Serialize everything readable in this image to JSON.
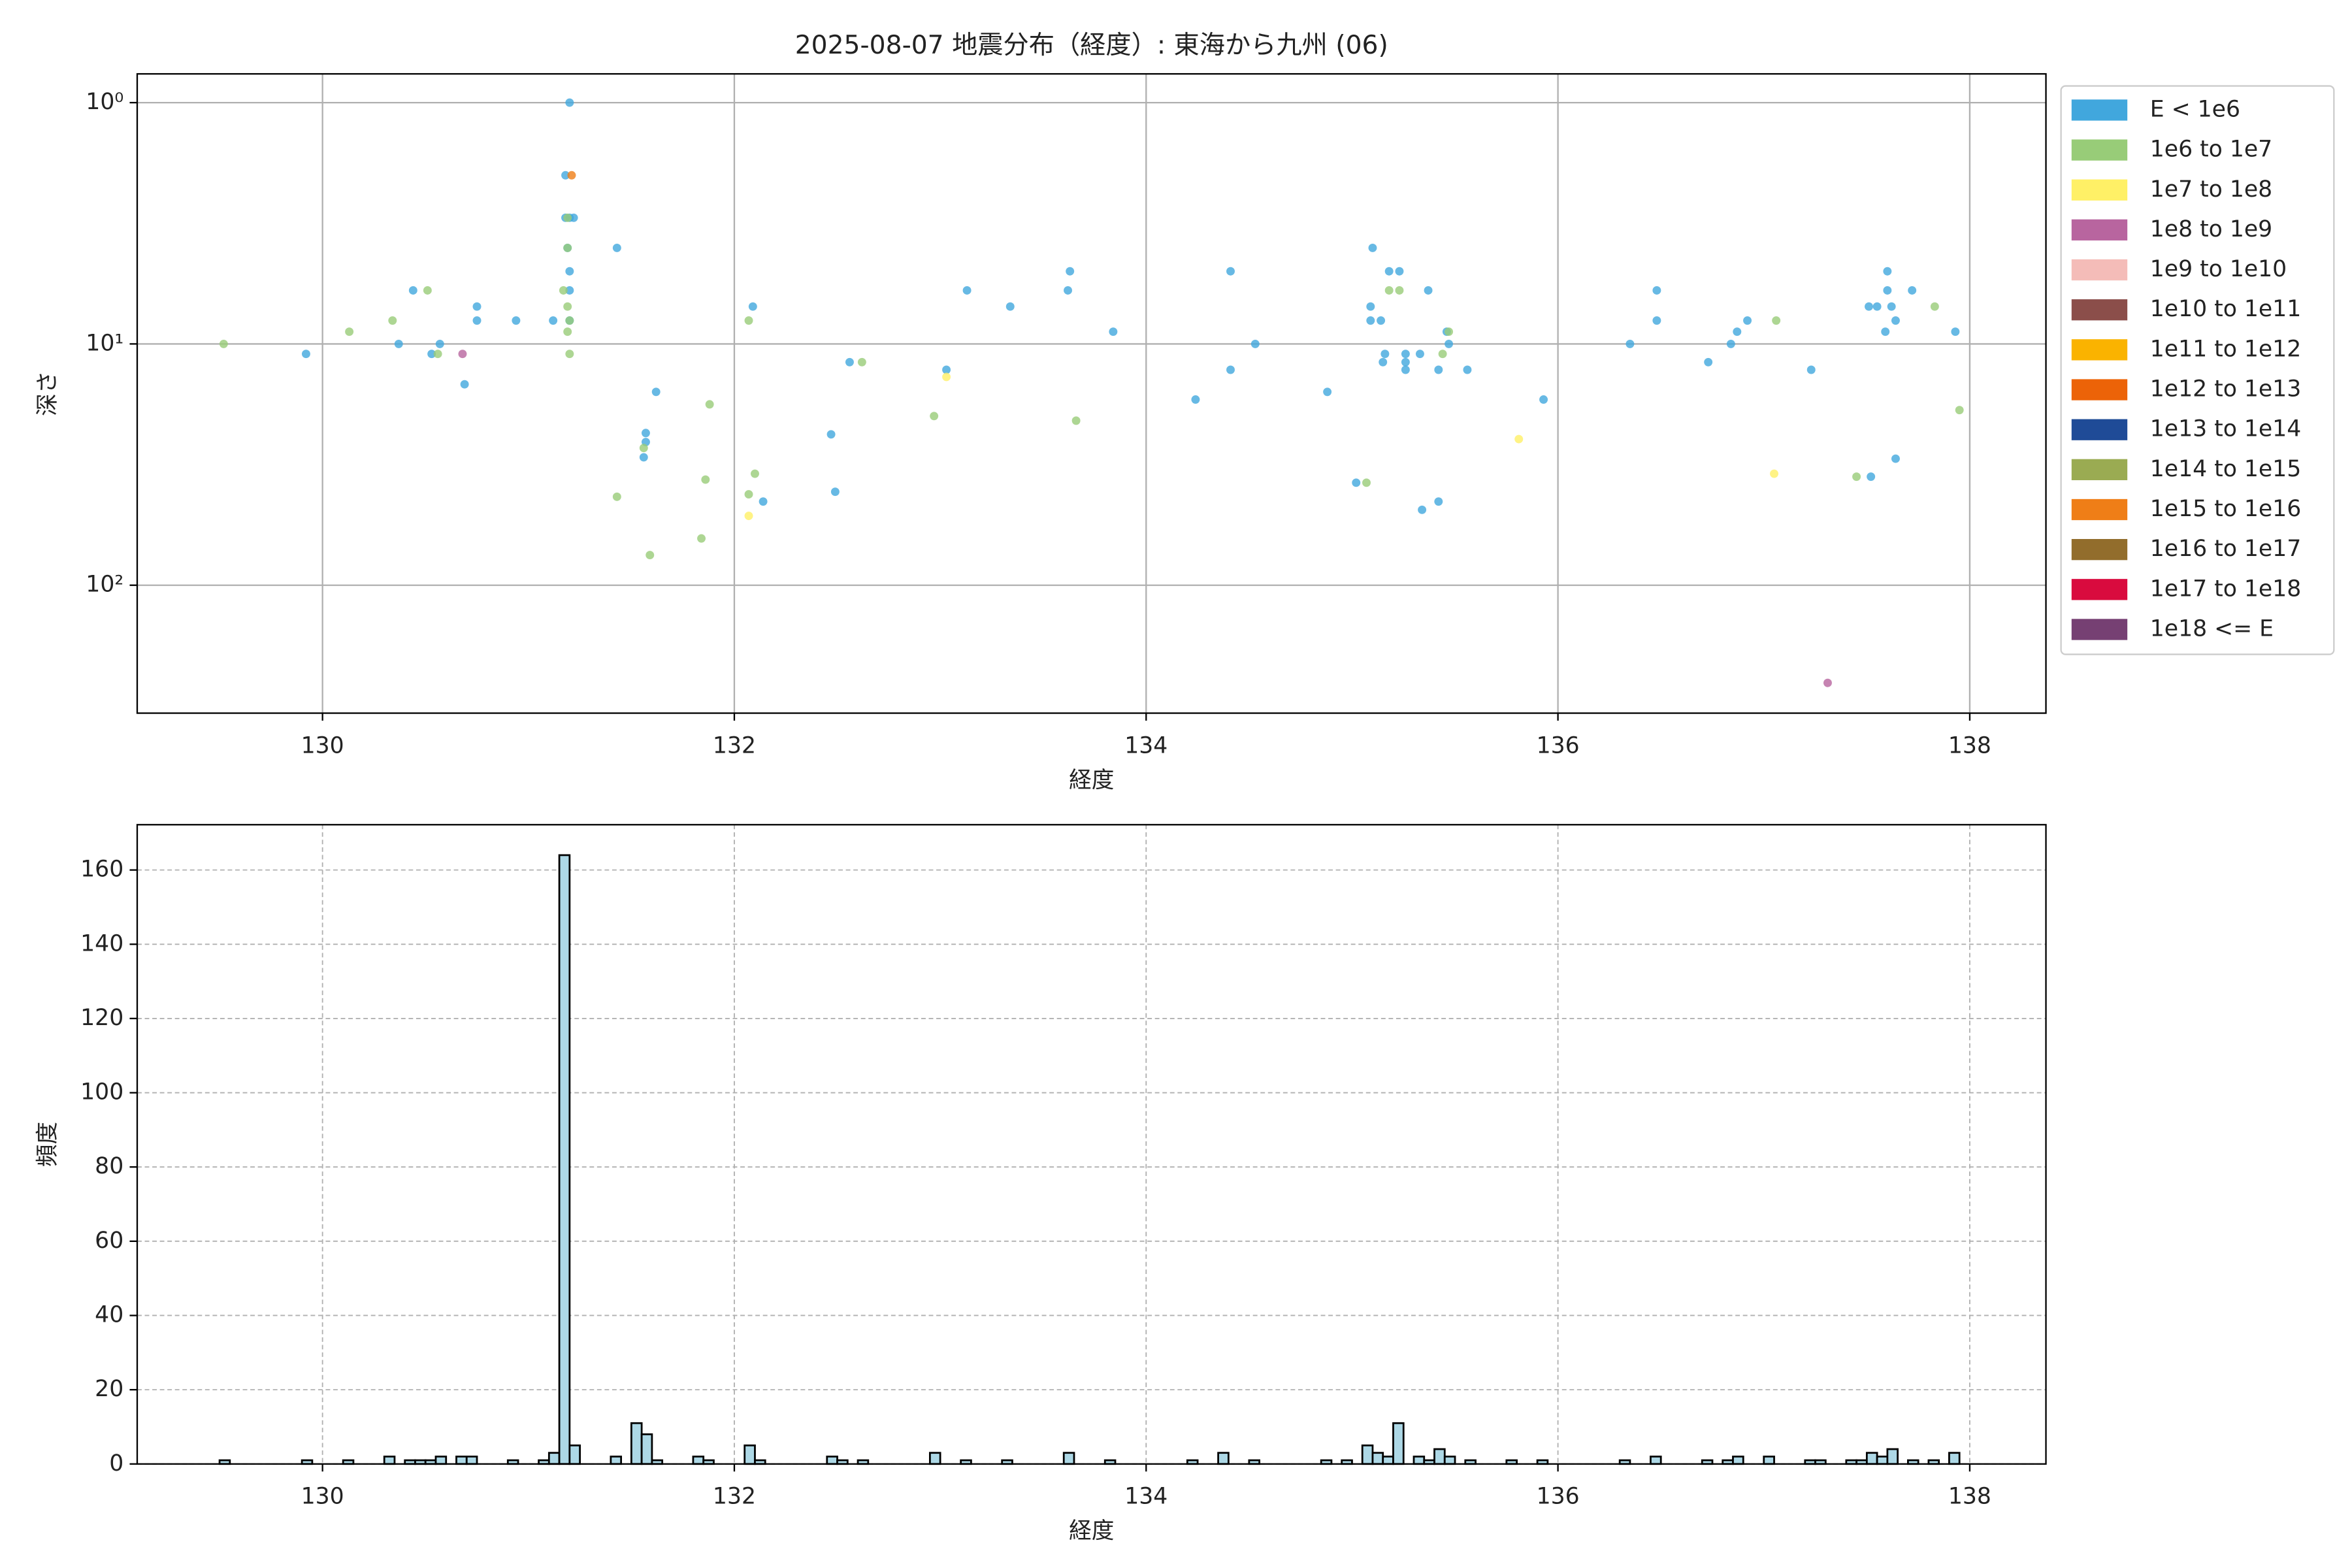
{
  "chart_data": [
    {
      "type": "scatter",
      "title": "2025-08-07 地震分布（経度）: 東海から九州 (06)",
      "xlabel": "経度",
      "ylabel": "深さ",
      "xlim": [
        129.1,
        138.37
      ],
      "xticks": [
        130,
        132,
        134,
        136,
        138
      ],
      "ylim": [
        0.76,
        339
      ],
      "yscale": "log",
      "yinvert": true,
      "yticks": [
        {
          "value": 1,
          "label": "10⁰"
        },
        {
          "value": 10,
          "label": "10¹"
        },
        {
          "value": 100,
          "label": "10²"
        }
      ],
      "grid": true,
      "legend": "outside",
      "series": [
        {
          "name": "E < 1e6",
          "color": "#41a7dd",
          "x": [
            131.2,
            131.18,
            131.2,
            131.18,
            131.22,
            131.19,
            131.2,
            131.2,
            131.2,
            131.12,
            131.43,
            130.44,
            129.92,
            130.37,
            130.57,
            130.53,
            130.75,
            130.75,
            130.94,
            130.69,
            131.62,
            131.57,
            131.57,
            131.56,
            132.09,
            132.56,
            132.47,
            132.14,
            132.49,
            133.03,
            133.13,
            133.34,
            133.63,
            133.62,
            133.84,
            134.41,
            134.41,
            134.24,
            134.53,
            134.88,
            135.02,
            135.1,
            135.09,
            135.09,
            135.14,
            135.16,
            135.15,
            135.18,
            135.23,
            135.26,
            135.26,
            135.26,
            135.33,
            135.37,
            135.34,
            135.42,
            135.42,
            135.47,
            135.56,
            135.46,
            135.93,
            136.35,
            136.48,
            136.48,
            136.73,
            136.84,
            136.87,
            136.92,
            137.23,
            137.52,
            137.51,
            137.55,
            137.62,
            137.6,
            137.6,
            137.59,
            137.64,
            137.72,
            137.64,
            137.93
          ],
          "values": [
            1.0,
            2.0,
            3.0,
            3.0,
            3.0,
            4.0,
            5.0,
            6.0,
            8.0,
            8.0,
            4.0,
            6.0,
            11.0,
            10,
            10,
            11,
            7,
            8,
            8,
            14.7,
            15.8,
            23.4,
            25.5,
            29.5,
            7,
            11.9,
            23.7,
            45,
            41,
            12.8,
            6,
            7,
            5,
            6,
            8.9,
            5,
            12.8,
            17,
            10,
            15.8,
            37.6,
            4,
            7,
            8,
            8,
            11,
            11.9,
            5,
            5,
            11,
            11.9,
            12.8,
            11,
            6,
            48.7,
            45,
            12.8,
            10,
            12.8,
            8.9,
            17,
            10,
            6,
            8,
            11.9,
            10,
            8.9,
            8,
            12.8,
            35.5,
            7,
            7,
            7,
            5,
            6,
            8.9,
            8,
            6,
            29.9,
            8.9
          ]
        },
        {
          "name": "1e6 to 1e7",
          "color": "#98cc78",
          "x": [
            129.52,
            130.13,
            130.34,
            130.51,
            130.56,
            131.19,
            131.19,
            131.17,
            131.19,
            131.2,
            131.19,
            131.2,
            131.43,
            131.56,
            131.59,
            131.84,
            131.86,
            131.88,
            132.07,
            132.07,
            132.1,
            132.62,
            132.97,
            133.66,
            135.18,
            135.23,
            135.44,
            135.47,
            135.07,
            137.06,
            137.45,
            137.83,
            137.95
          ],
          "values": [
            10,
            8.9,
            8,
            6,
            11,
            3,
            4,
            6,
            7,
            8,
            8.9,
            11,
            43,
            27,
            75,
            64,
            36.5,
            17.8,
            8,
            42,
            34.5,
            11.9,
            19.9,
            20.8,
            6,
            6,
            11,
            8.9,
            37.6,
            8,
            35.5,
            7,
            18.8
          ]
        },
        {
          "name": "1e7 to 1e8",
          "color": "#fff066",
          "x": [
            133.03,
            132.07,
            135.81,
            137.05
          ],
          "values": [
            13.7,
            51.6,
            24.8,
            34.5
          ]
        },
        {
          "name": "1e8 to 1e9",
          "color": "#b8659f",
          "x": [
            130.68,
            137.31
          ],
          "values": [
            11,
            254
          ]
        },
        {
          "name": "1e9 to 1e10",
          "color": "#f4bcb8",
          "x": [],
          "values": []
        },
        {
          "name": "1e10 to 1e11",
          "color": "#8b4e4a",
          "x": [],
          "values": []
        },
        {
          "name": "1e11 to 1e12",
          "color": "#fab300",
          "x": [],
          "values": []
        },
        {
          "name": "1e12 to 1e13",
          "color": "#ec6308",
          "x": [],
          "values": []
        },
        {
          "name": "1e13 to 1e14",
          "color": "#1f4b97",
          "x": [],
          "values": []
        },
        {
          "name": "1e14 to 1e15",
          "color": "#9aab52",
          "x": [],
          "values": []
        },
        {
          "name": "1e15 to 1e16",
          "color": "#ef7e17",
          "x": [
            131.21
          ],
          "values": [
            2.0
          ]
        },
        {
          "name": "1e16 to 1e17",
          "color": "#926d2c",
          "x": [],
          "values": []
        },
        {
          "name": "1e17 to 1e18",
          "color": "#d90b3e",
          "x": [],
          "values": []
        },
        {
          "name": "1e18 <= E",
          "color": "#764073",
          "x": [],
          "values": []
        }
      ]
    },
    {
      "type": "histogram",
      "xlabel": "経度",
      "ylabel": "頻度",
      "xlim": [
        129.1,
        138.37
      ],
      "xticks": [
        130,
        132,
        134,
        136,
        138
      ],
      "ylim": [
        0,
        172.2
      ],
      "yticks": [
        0,
        20,
        40,
        60,
        80,
        100,
        120,
        140,
        160
      ],
      "grid": true,
      "color": "#add8e6",
      "edgecolor": "#000000",
      "bins": [
        129.5,
        129.55,
        129.6,
        129.65,
        129.7,
        129.75,
        129.8,
        129.85,
        129.9,
        129.95,
        130,
        130.05,
        130.1,
        130.15,
        130.2,
        130.25,
        130.3,
        130.35,
        130.4,
        130.45,
        130.5,
        130.55,
        130.6,
        130.65,
        130.7,
        130.75,
        130.8,
        130.85,
        130.9,
        130.95,
        131,
        131.05,
        131.1,
        131.15,
        131.2,
        131.25,
        131.3,
        131.35,
        131.4,
        131.45,
        131.5,
        131.55,
        131.6,
        131.65,
        131.7,
        131.75,
        131.8,
        131.85,
        131.9,
        131.95,
        132,
        132.05,
        132.1,
        132.15,
        132.2,
        132.25,
        132.3,
        132.35,
        132.4,
        132.45,
        132.5,
        132.55,
        132.6,
        132.65,
        132.7,
        132.75,
        132.8,
        132.85,
        132.9,
        132.95,
        133,
        133.05,
        133.1,
        133.15,
        133.2,
        133.25,
        133.3,
        133.35,
        133.4,
        133.45,
        133.5,
        133.55,
        133.6,
        133.65,
        133.7,
        133.75,
        133.8,
        133.85,
        133.9,
        133.95,
        134,
        134.05,
        134.1,
        134.15,
        134.2,
        134.25,
        134.3,
        134.35,
        134.4,
        134.45,
        134.5,
        134.55,
        134.6,
        134.65,
        134.7,
        134.75,
        134.8,
        134.85,
        134.9,
        134.95,
        135,
        135.05,
        135.1,
        135.15,
        135.2,
        135.25,
        135.3,
        135.35,
        135.4,
        135.45,
        135.5,
        135.55,
        135.6,
        135.65,
        135.7,
        135.75,
        135.8,
        135.85,
        135.9,
        135.95,
        136,
        136.05,
        136.1,
        136.15,
        136.2,
        136.25,
        136.3,
        136.35,
        136.4,
        136.45,
        136.5,
        136.55,
        136.6,
        136.65,
        136.7,
        136.75,
        136.8,
        136.85,
        136.9,
        136.95,
        137,
        137.05,
        137.1,
        137.15,
        137.2,
        137.25,
        137.3,
        137.35,
        137.4,
        137.45,
        137.5,
        137.55,
        137.6,
        137.65,
        137.7,
        137.75,
        137.8,
        137.85,
        137.9,
        137.95,
        138
      ],
      "values": [
        1,
        0,
        0,
        0,
        0,
        0,
        0,
        0,
        1,
        0,
        0,
        0,
        1,
        0,
        0,
        0,
        2,
        0,
        1,
        1,
        1,
        2,
        0,
        2,
        2,
        0,
        0,
        0,
        1,
        0,
        0,
        1,
        3,
        164,
        5,
        0,
        0,
        0,
        2,
        0,
        11,
        8,
        1,
        0,
        0,
        0,
        2,
        1,
        0,
        0,
        0,
        5,
        1,
        0,
        0,
        0,
        0,
        0,
        0,
        2,
        1,
        0,
        1,
        0,
        0,
        0,
        0,
        0,
        0,
        3,
        0,
        0,
        1,
        0,
        0,
        0,
        1,
        0,
        0,
        0,
        0,
        0,
        3,
        0,
        0,
        0,
        1,
        0,
        0,
        0,
        0,
        0,
        0,
        0,
        1,
        0,
        0,
        3,
        0,
        0,
        1,
        0,
        0,
        0,
        0,
        0,
        0,
        1,
        0,
        1,
        0,
        5,
        3,
        2,
        11,
        0,
        2,
        1,
        4,
        2,
        0,
        1,
        0,
        0,
        0,
        1,
        0,
        0,
        1,
        0,
        0,
        0,
        0,
        0,
        0,
        0,
        1,
        0,
        0,
        2,
        0,
        0,
        0,
        0,
        1,
        0,
        1,
        2,
        0,
        0,
        2,
        0,
        0,
        0,
        1,
        1,
        0,
        0,
        1,
        1,
        3,
        2,
        4,
        0,
        1,
        0,
        1,
        0,
        3,
        0
      ]
    }
  ]
}
